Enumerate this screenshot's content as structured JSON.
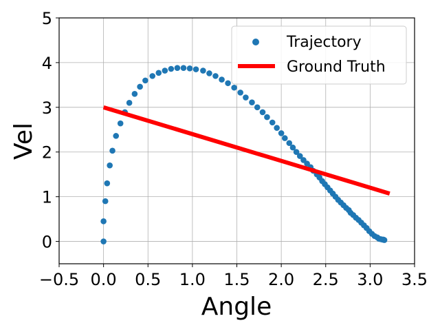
{
  "chart_data": {
    "type": "scatter",
    "xlabel": "Angle",
    "ylabel": "Vel",
    "xlim": [
      -0.5,
      3.5
    ],
    "ylim": [
      -0.5,
      5
    ],
    "xticks": [
      "−0.5",
      "0.0",
      "0.5",
      "1.0",
      "1.5",
      "2.0",
      "2.5",
      "3.0",
      "3.5"
    ],
    "xtick_values": [
      -0.5,
      0.0,
      0.5,
      1.0,
      1.5,
      2.0,
      2.5,
      3.0,
      3.5
    ],
    "yticks": [
      "0",
      "1",
      "2",
      "3",
      "4",
      "5"
    ],
    "ytick_values": [
      0,
      1,
      2,
      3,
      4,
      5
    ],
    "grid": true,
    "legend": {
      "placement": "top-right",
      "entries": [
        "Trajectory",
        "Ground Truth"
      ]
    },
    "series": [
      {
        "name": "Trajectory",
        "kind": "scatter",
        "color": "#1f77b4",
        "x": [
          0.0,
          0.0,
          0.02,
          0.04,
          0.07,
          0.1,
          0.14,
          0.19,
          0.24,
          0.29,
          0.35,
          0.41,
          0.47,
          0.55,
          0.62,
          0.69,
          0.76,
          0.83,
          0.9,
          0.97,
          1.04,
          1.12,
          1.19,
          1.26,
          1.33,
          1.4,
          1.47,
          1.54,
          1.6,
          1.67,
          1.73,
          1.79,
          1.84,
          1.9,
          1.95,
          2.0,
          2.04,
          2.09,
          2.13,
          2.17,
          2.21,
          2.25,
          2.29,
          2.33,
          2.36,
          2.4,
          2.43,
          2.46,
          2.49,
          2.52,
          2.55,
          2.58,
          2.61,
          2.64,
          2.67,
          2.7,
          2.73,
          2.76,
          2.78,
          2.81,
          2.84,
          2.87,
          2.9,
          2.93,
          2.96,
          2.99,
          3.02,
          3.05,
          3.08,
          3.1,
          3.12,
          3.14,
          3.15,
          3.16
        ],
        "y": [
          0.0,
          0.45,
          0.9,
          1.3,
          1.7,
          2.03,
          2.36,
          2.64,
          2.89,
          3.1,
          3.3,
          3.46,
          3.6,
          3.7,
          3.77,
          3.82,
          3.86,
          3.88,
          3.88,
          3.87,
          3.85,
          3.82,
          3.76,
          3.7,
          3.62,
          3.54,
          3.44,
          3.33,
          3.22,
          3.11,
          3.0,
          2.89,
          2.78,
          2.66,
          2.54,
          2.42,
          2.31,
          2.2,
          2.1,
          2.0,
          1.91,
          1.82,
          1.74,
          1.66,
          1.58,
          1.5,
          1.43,
          1.35,
          1.28,
          1.21,
          1.14,
          1.07,
          1.0,
          0.93,
          0.87,
          0.81,
          0.75,
          0.7,
          0.64,
          0.59,
          0.53,
          0.48,
          0.42,
          0.36,
          0.3,
          0.23,
          0.17,
          0.12,
          0.09,
          0.06,
          0.05,
          0.04,
          0.04,
          0.03
        ]
      },
      {
        "name": "Ground Truth",
        "kind": "line",
        "color": "#ff0000",
        "x": [
          0.0,
          3.22
        ],
        "y": [
          3.0,
          1.07
        ]
      }
    ]
  }
}
